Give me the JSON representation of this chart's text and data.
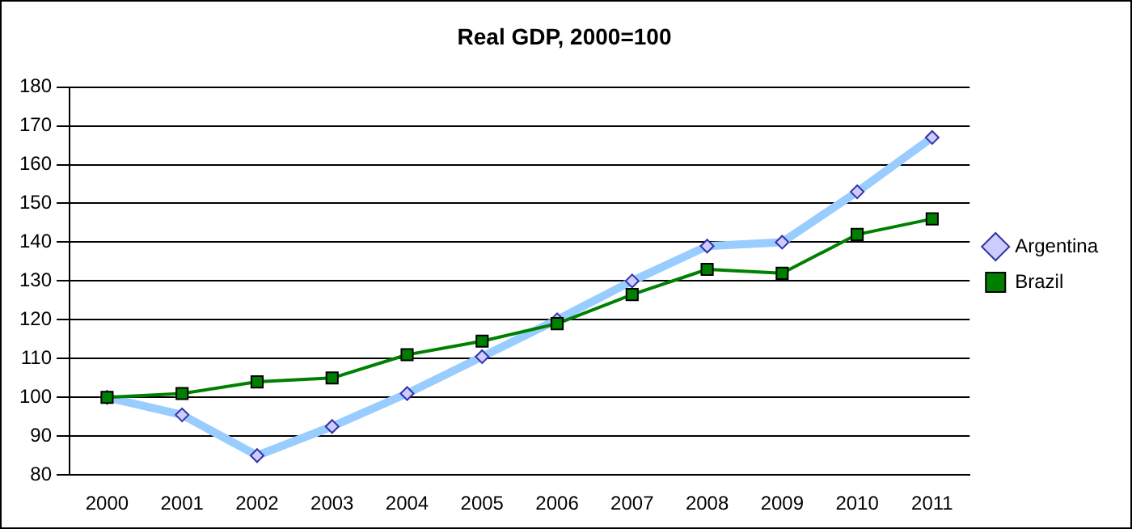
{
  "chart_data": {
    "type": "line",
    "title": "Real GDP, 2000=100",
    "categories": [
      "2000",
      "2001",
      "2002",
      "2003",
      "2004",
      "2005",
      "2006",
      "2007",
      "2008",
      "2009",
      "2010",
      "2011"
    ],
    "series": [
      {
        "name": "Argentina",
        "color": "#99ccff",
        "marker": "diamond",
        "values": [
          100,
          95.5,
          85,
          92.5,
          101,
          110.5,
          120,
          130,
          139,
          140,
          153,
          167
        ]
      },
      {
        "name": "Brazil",
        "color": "#008000",
        "marker": "square",
        "values": [
          100,
          101,
          104,
          105,
          111,
          114.5,
          119,
          126.5,
          133,
          132,
          142,
          146
        ]
      }
    ],
    "ylim": [
      80,
      180
    ],
    "yticks": [
      80,
      90,
      100,
      110,
      120,
      130,
      140,
      150,
      160,
      170,
      180
    ],
    "grid": "y",
    "legend": "right",
    "line_style": "solid"
  }
}
